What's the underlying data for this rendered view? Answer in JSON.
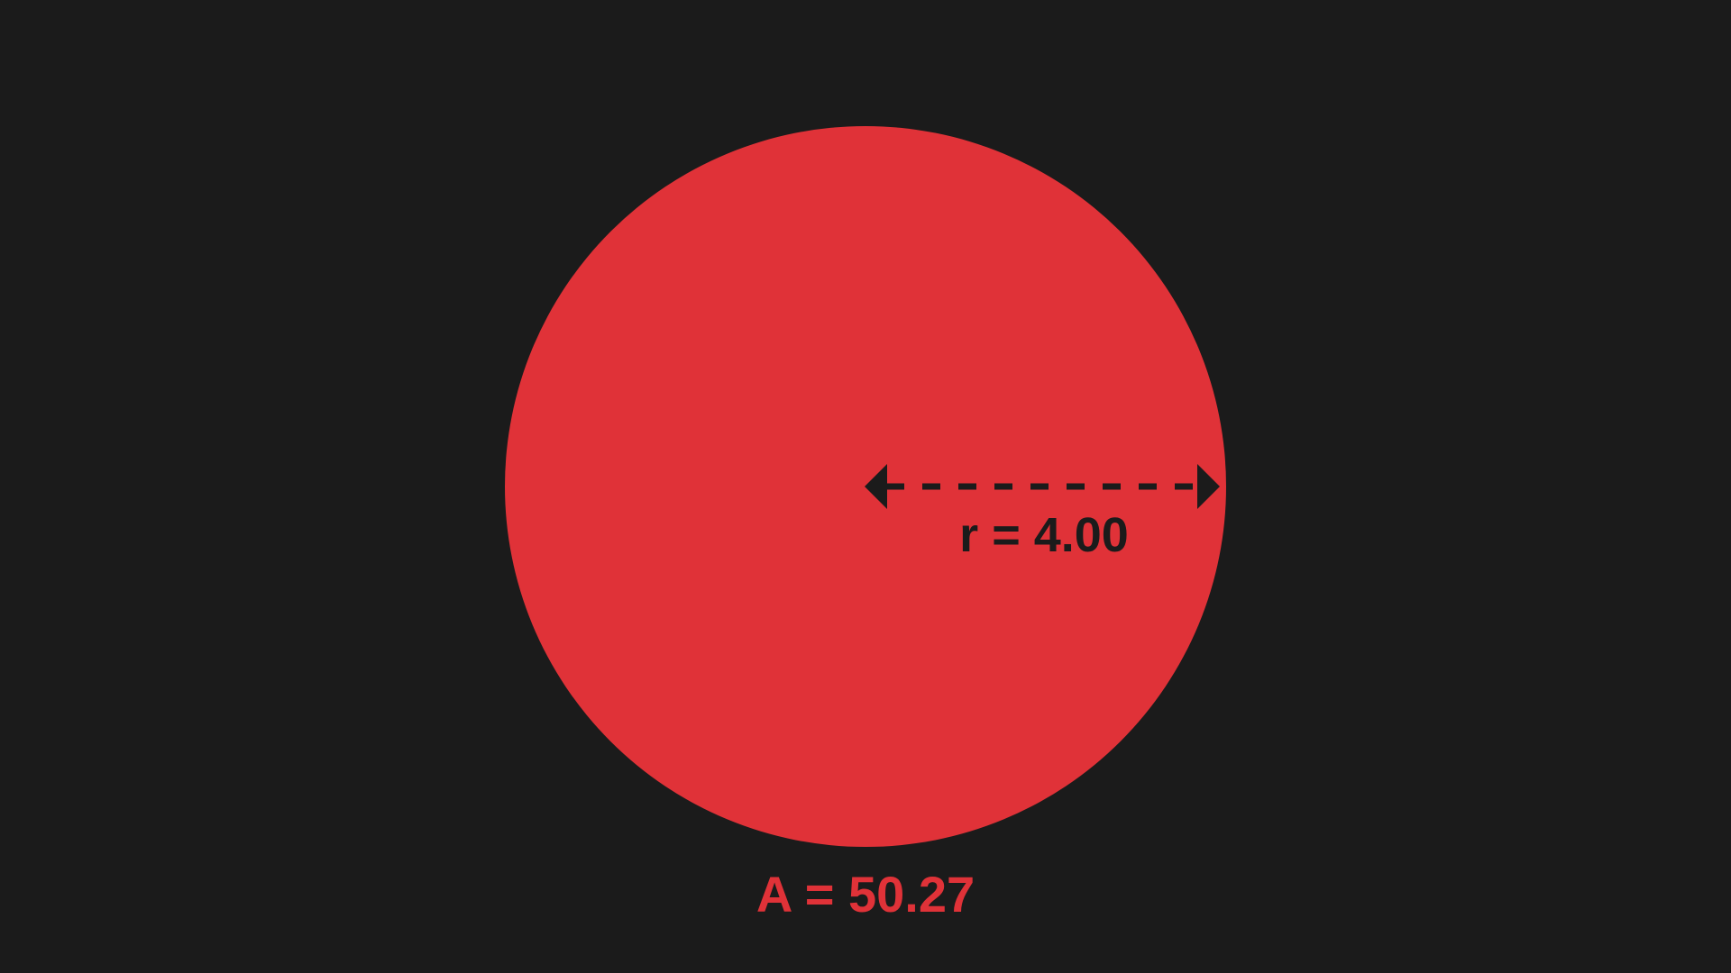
{
  "colors": {
    "background": "#1b1b1b",
    "circle_fill": "#e03238",
    "radius_marker": "#1b1b1b",
    "area_label": "#e03238"
  },
  "figure": {
    "radius": 4.0,
    "radius_label": "r = 4.00",
    "area": 50.27,
    "area_label": "A = 50.27"
  }
}
